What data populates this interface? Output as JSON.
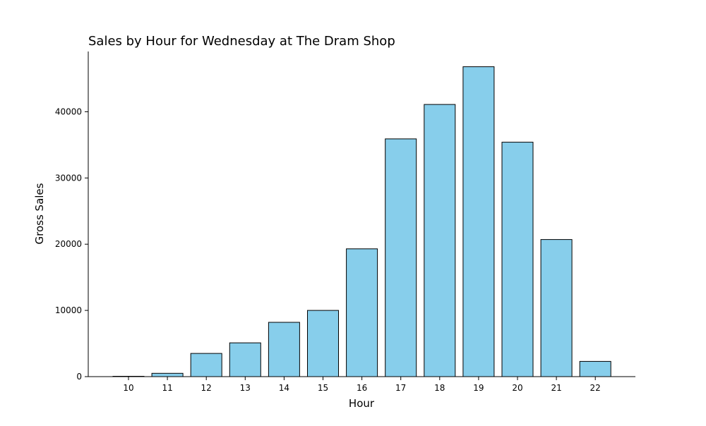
{
  "chart_data": {
    "type": "bar",
    "title": "Sales by Hour for Wednesday at The Dram Shop",
    "xlabel": "Hour",
    "ylabel": "Gross Sales",
    "categories": [
      "10",
      "11",
      "12",
      "13",
      "14",
      "15",
      "16",
      "17",
      "18",
      "19",
      "20",
      "21",
      "22"
    ],
    "values": [
      50,
      500,
      3500,
      5100,
      8200,
      10000,
      19300,
      35900,
      41100,
      46800,
      35400,
      20700,
      2300
    ],
    "ylim": [
      0,
      49100
    ],
    "yticks": [
      0,
      10000,
      20000,
      30000,
      40000
    ],
    "grid": false,
    "legend": "none",
    "colors": {
      "bar_fill": "#87CEEB",
      "bar_edge": "#000000",
      "axis": "#000000"
    }
  }
}
